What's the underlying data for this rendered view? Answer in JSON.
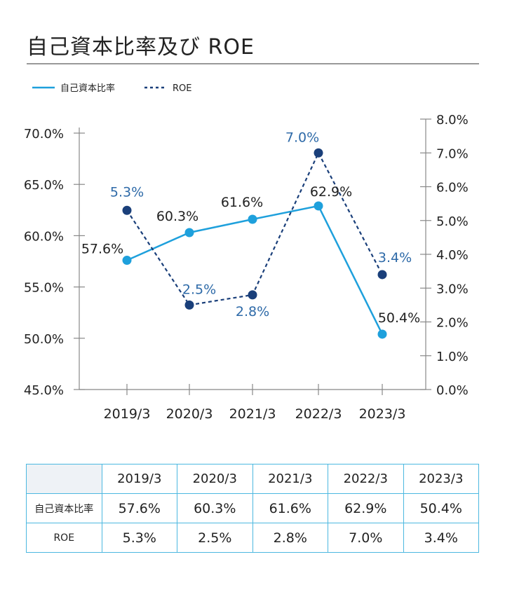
{
  "title": "自己資本比率及び ROE",
  "colors": {
    "equity": "#1ea0dc",
    "roe": "#1a3f7a",
    "roe_label": "#2e6aa8",
    "grid_axis": "#888888",
    "table_border": "#4cb8e0"
  },
  "chart_data": {
    "type": "line",
    "categories": [
      "2019/3",
      "2020/3",
      "2021/3",
      "2022/3",
      "2023/3"
    ],
    "series": [
      {
        "name": "自己資本比率",
        "axis": "left",
        "style": "solid",
        "values": [
          57.6,
          60.3,
          61.6,
          62.9,
          50.4
        ],
        "labels": [
          "57.6%",
          "60.3%",
          "61.6%",
          "62.9%",
          "50.4%"
        ]
      },
      {
        "name": "ROE",
        "axis": "right",
        "style": "dashed",
        "values": [
          5.3,
          2.5,
          2.8,
          7.0,
          3.4
        ],
        "labels": [
          "5.3%",
          "2.5%",
          "2.8%",
          "7.0%",
          "3.4%"
        ]
      }
    ],
    "y_left": {
      "range": [
        45,
        70
      ],
      "ticks": [
        "45.0%",
        "50.0%",
        "55.0%",
        "60.0%",
        "65.0%",
        "70.0%"
      ]
    },
    "y_right": {
      "range": [
        0,
        8
      ],
      "ticks": [
        "0.0%",
        "1.0%",
        "2.0%",
        "3.0%",
        "4.0%",
        "5.0%",
        "6.0%",
        "7.0%",
        "8.0%"
      ]
    },
    "grid": false,
    "legend": "top-left"
  },
  "table": {
    "header": [
      "",
      "2019/3",
      "2020/3",
      "2021/3",
      "2022/3",
      "2023/3"
    ],
    "rows": [
      {
        "label": "自己資本比率",
        "values": [
          "57.6%",
          "60.3%",
          "61.6%",
          "62.9%",
          "50.4%"
        ]
      },
      {
        "label": "ROE",
        "values": [
          "5.3%",
          "2.5%",
          "2.8%",
          "7.0%",
          "3.4%"
        ]
      }
    ]
  }
}
